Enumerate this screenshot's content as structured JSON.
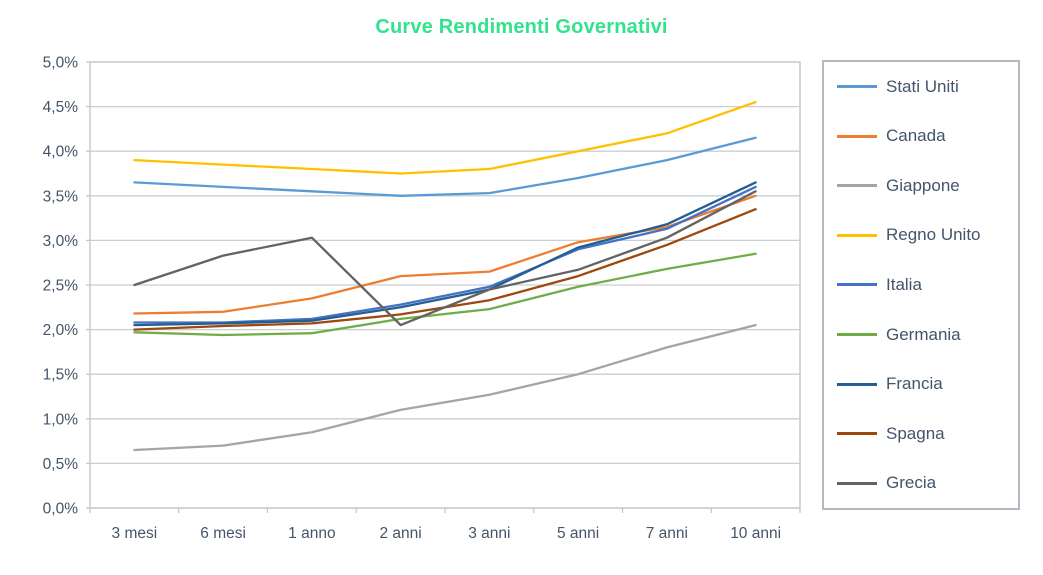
{
  "title": "Curve Rendimenti Governativi",
  "colors": {
    "title": "#31e38c",
    "axis_text": "#44546a",
    "gridline": "#c9ced6",
    "plot_border": "#c2c8d0",
    "legend_border": "#b3b9c1",
    "legend_text": "#44546a",
    "background": "#ffffff"
  },
  "axis": {
    "y_tick_labels": [
      "0,0%",
      "0,5%",
      "1,0%",
      "1,5%",
      "2,0%",
      "2,5%",
      "3,0%",
      "3,5%",
      "4,0%",
      "4,5%",
      "5,0%"
    ],
    "x_tick_labels": [
      "3 mesi",
      "6 mesi",
      "1 anno",
      "2 anni",
      "3 anni",
      "5 anni",
      "7 anni",
      "10 anni"
    ]
  },
  "legend": {
    "entries": [
      "Stati Uniti",
      "Canada",
      "Giappone",
      "Regno Unito",
      "Italia",
      "Germania",
      "Francia",
      "Spagna",
      "Grecia"
    ]
  },
  "chart_data": {
    "type": "line",
    "title": "Curve Rendimenti Governativi",
    "categories": [
      "3 mesi",
      "6 mesi",
      "1 anno",
      "2 anni",
      "3 anni",
      "5 anni",
      "7 anni",
      "10 anni"
    ],
    "xlabel": "",
    "ylabel": "",
    "ylim": [
      0,
      5
    ],
    "y_step": 0.5,
    "y_tick_format": "percent-comma",
    "grid": true,
    "legend_position": "right",
    "series": [
      {
        "name": "Stati Uniti",
        "color": "#5B9BD5",
        "values": [
          3.65,
          3.6,
          3.55,
          3.5,
          3.53,
          3.7,
          3.9,
          4.15
        ]
      },
      {
        "name": "Canada",
        "color": "#ED7D31",
        "values": [
          2.18,
          2.2,
          2.35,
          2.6,
          2.65,
          2.98,
          3.15,
          3.5
        ]
      },
      {
        "name": "Giappone",
        "color": "#A5A5A5",
        "values": [
          0.65,
          0.7,
          0.85,
          1.1,
          1.27,
          1.5,
          1.8,
          2.05
        ]
      },
      {
        "name": "Regno Unito",
        "color": "#FFC000",
        "values": [
          3.9,
          3.85,
          3.8,
          3.75,
          3.8,
          4.0,
          4.2,
          4.55
        ]
      },
      {
        "name": "Italia",
        "color": "#4472C4",
        "values": [
          2.08,
          2.08,
          2.12,
          2.28,
          2.48,
          2.9,
          3.13,
          3.6
        ]
      },
      {
        "name": "Germania",
        "color": "#70AD47",
        "values": [
          1.97,
          1.94,
          1.96,
          2.12,
          2.23,
          2.48,
          2.68,
          2.85
        ]
      },
      {
        "name": "Francia",
        "color": "#255E91",
        "values": [
          2.05,
          2.07,
          2.1,
          2.25,
          2.45,
          2.92,
          3.18,
          3.65
        ]
      },
      {
        "name": "Spagna",
        "color": "#9E480E",
        "values": [
          2.0,
          2.04,
          2.07,
          2.17,
          2.33,
          2.6,
          2.95,
          3.35
        ]
      },
      {
        "name": "Grecia",
        "color": "#636363",
        "values": [
          2.5,
          2.83,
          3.03,
          2.05,
          2.45,
          2.67,
          3.03,
          3.55
        ]
      }
    ]
  }
}
